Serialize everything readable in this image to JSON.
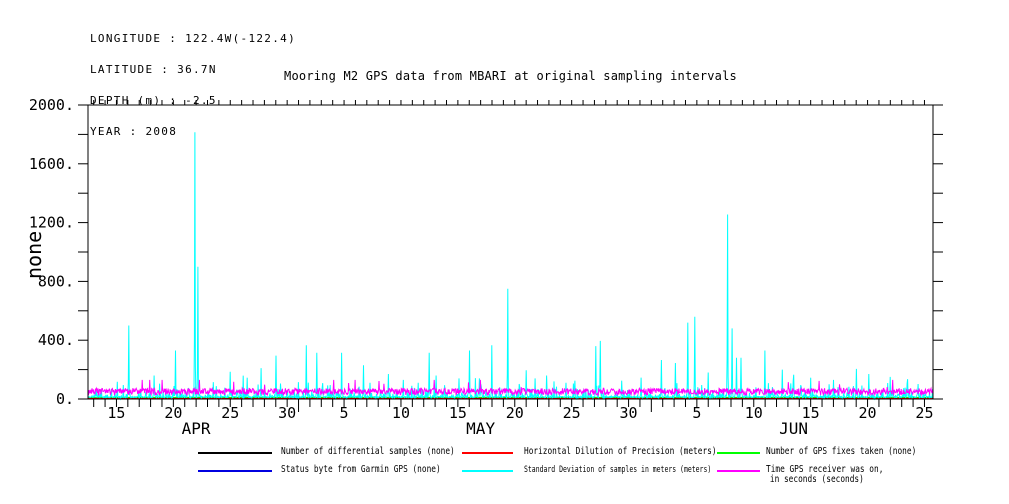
{
  "meta_block": {
    "lines": [
      "LONGITUDE : 122.4W(-122.4)",
      "LATITUDE : 36.7N",
      "DEPTH (m) : -2.5",
      "YEAR : 2008"
    ]
  },
  "title": "Mooring M2 GPS data from MBARI at original sampling intervals",
  "chart_data": {
    "type": "line",
    "title": "Mooring M2 GPS data from MBARI at original sampling intervals",
    "xlabel": "",
    "ylabel": "none",
    "ylim": [
      0,
      2000
    ],
    "grid": false,
    "legend_position": "below",
    "ytick_step_major": 400,
    "ytick_step_minor": 200,
    "ytick_labels": [
      "0.",
      "400.",
      "800.",
      "1200.",
      "1600.",
      "2000."
    ],
    "x_axis": {
      "year": 2008,
      "start": "2008-04-12.5",
      "days_total": 74.25,
      "tick_interval": "1 day",
      "months": [
        {
          "name": "APR",
          "days_in_month": 30,
          "start_offset": -12.5,
          "label_days": [
            15,
            20,
            25,
            30
          ],
          "month_label_day": 22
        },
        {
          "name": "MAY",
          "days_in_month": 31,
          "start_offset": 17.5,
          "label_days": [
            5,
            10,
            15,
            20,
            25,
            30
          ],
          "month_label_day": 17
        },
        {
          "name": "JUN",
          "days_in_month": 30,
          "start_offset": 48.5,
          "label_days": [
            5,
            10,
            15,
            20,
            25
          ],
          "month_label_day": 13.5
        }
      ]
    },
    "series": [
      {
        "name": "Number of differential samples (none)",
        "color": "#000000",
        "z": 0,
        "pattern": "flat",
        "base": 3
      },
      {
        "name": "Status byte from Garmin GPS (none)",
        "color": "#0000e0",
        "z": 1,
        "pattern": "flat",
        "base": 6
      },
      {
        "name": "Horizontal Dilution of Precision (meters)",
        "color": "#ff0000",
        "z": 2,
        "pattern": "noise",
        "base": 2,
        "amp": 6,
        "outlier_chance": 0,
        "outlier_extra": 0,
        "cap": 12
      },
      {
        "name": "Number of GPS fixes taken (none)",
        "color": "#00ff00",
        "z": 3,
        "pattern": "flat",
        "base": 11
      },
      {
        "name": "Standard Deviation of samples in meters (meters)",
        "color": "#00ffff",
        "z": 4,
        "pattern": "noise_spikes",
        "floor": 9,
        "floor_jitter": 9,
        "tail_scale": 26,
        "tail_cap": 150,
        "spikes": [
          [
            3.6,
            500
          ],
          [
            5.8,
            160
          ],
          [
            7.7,
            330
          ],
          [
            9.4,
            1815
          ],
          [
            9.65,
            900
          ],
          [
            11,
            115
          ],
          [
            12.5,
            185
          ],
          [
            14,
            145
          ],
          [
            15.2,
            210
          ],
          [
            16.5,
            295
          ],
          [
            19.2,
            365
          ],
          [
            20.1,
            315
          ],
          [
            21.3,
            95
          ],
          [
            22.3,
            315
          ],
          [
            24.2,
            230
          ],
          [
            24.8,
            110
          ],
          [
            26.4,
            170
          ],
          [
            27.7,
            130
          ],
          [
            29,
            110
          ],
          [
            30,
            315
          ],
          [
            30.6,
            160
          ],
          [
            32.6,
            140
          ],
          [
            33.5,
            330
          ],
          [
            34.4,
            140
          ],
          [
            35.5,
            365
          ],
          [
            36.9,
            750
          ],
          [
            38.5,
            195
          ],
          [
            39.3,
            140
          ],
          [
            40.3,
            160
          ],
          [
            42,
            110
          ],
          [
            42.8,
            125
          ],
          [
            44.6,
            360
          ],
          [
            45,
            395
          ],
          [
            46.9,
            125
          ],
          [
            48.6,
            145
          ],
          [
            50.4,
            265
          ],
          [
            51.6,
            245
          ],
          [
            52.7,
            520
          ],
          [
            53.3,
            560
          ],
          [
            54.5,
            180
          ],
          [
            56.2,
            1255
          ],
          [
            56.6,
            480
          ],
          [
            57,
            280
          ],
          [
            57.4,
            280
          ],
          [
            59.5,
            330
          ],
          [
            61,
            200
          ],
          [
            62,
            165
          ],
          [
            63.5,
            145
          ],
          [
            65.5,
            130
          ],
          [
            67.5,
            205
          ],
          [
            68.6,
            170
          ],
          [
            70.5,
            150
          ],
          [
            72,
            135
          ]
        ]
      },
      {
        "name": "Time GPS receiver was on, in seconds (seconds)",
        "color": "#ff00ff",
        "z": 5,
        "pattern": "noise",
        "base": 28,
        "amp": 45,
        "outlier_chance": 0.012,
        "outlier_extra": 70,
        "cap": 130
      }
    ]
  },
  "legend": {
    "columns": [
      {
        "rows": [
          {
            "label": "Number of differential samples (none)",
            "color": "#000000"
          },
          {
            "label": "Status byte from Garmin GPS (none)",
            "color": "#0000e0"
          }
        ]
      },
      {
        "rows": [
          {
            "label": "Horizontal Dilution of Precision (meters)",
            "color": "#ff0000"
          },
          {
            "label": "Standard Deviation of samples in meters (meters)",
            "color": "#00ffff",
            "small": true
          }
        ]
      },
      {
        "rows": [
          {
            "label": "Number of GPS fixes taken (none)",
            "color": "#00ff00"
          },
          {
            "label": "Time GPS receiver was on,",
            "label2": "in seconds (seconds)",
            "color": "#ff00ff"
          }
        ]
      }
    ]
  }
}
